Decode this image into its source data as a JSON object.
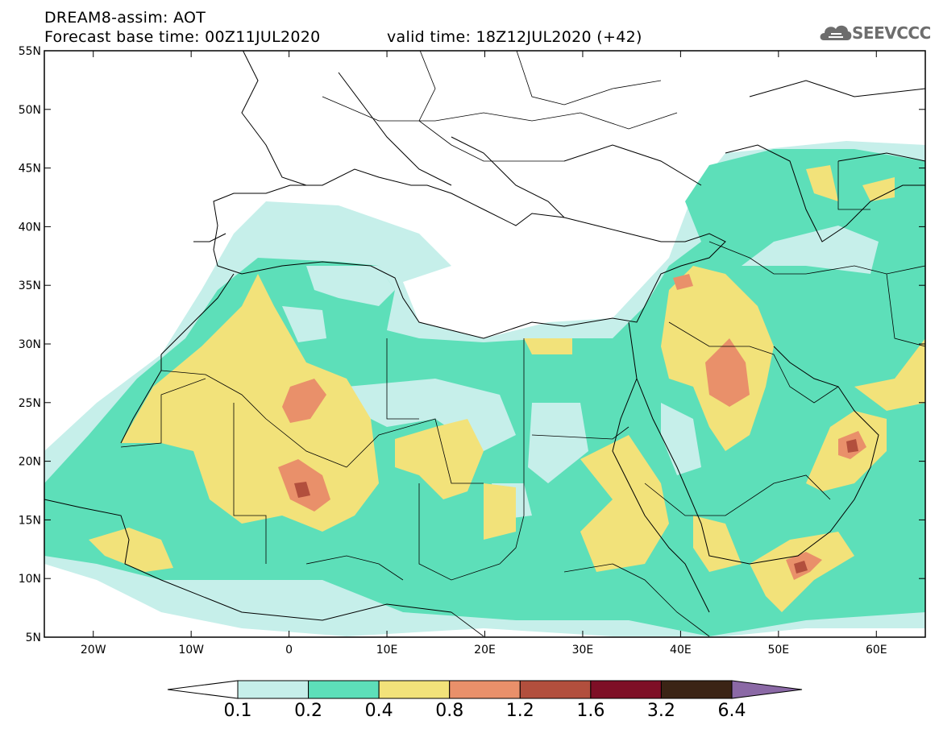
{
  "header": {
    "title": "DREAM8-assim: AOT",
    "base_time": "Forecast base time: 00Z11JUL2020",
    "valid_time": "valid time: 18Z12JUL2020 (+42)"
  },
  "logo": {
    "text": "SEEVCCC",
    "icon": "cloud-icon"
  },
  "map": {
    "lon_range": [
      -25,
      65
    ],
    "lat_range": [
      5,
      55
    ],
    "lat_ticks": [
      "55N",
      "50N",
      "45N",
      "40N",
      "35N",
      "30N",
      "25N",
      "20N",
      "15N",
      "10N",
      "5N"
    ],
    "lon_ticks": [
      "20W",
      "10W",
      "0",
      "10E",
      "20E",
      "30E",
      "40E",
      "50E",
      "60E"
    ]
  },
  "colorbar": {
    "labels": [
      "0.1",
      "0.2",
      "0.4",
      "0.8",
      "1.2",
      "1.6",
      "3.2",
      "6.4"
    ],
    "colors": [
      "#ffffff",
      "#c6efea",
      "#5ddfb9",
      "#f2e27a",
      "#e9906a",
      "#b24f3d",
      "#7e0f26",
      "#3b2415",
      "#8b69a6"
    ]
  }
}
